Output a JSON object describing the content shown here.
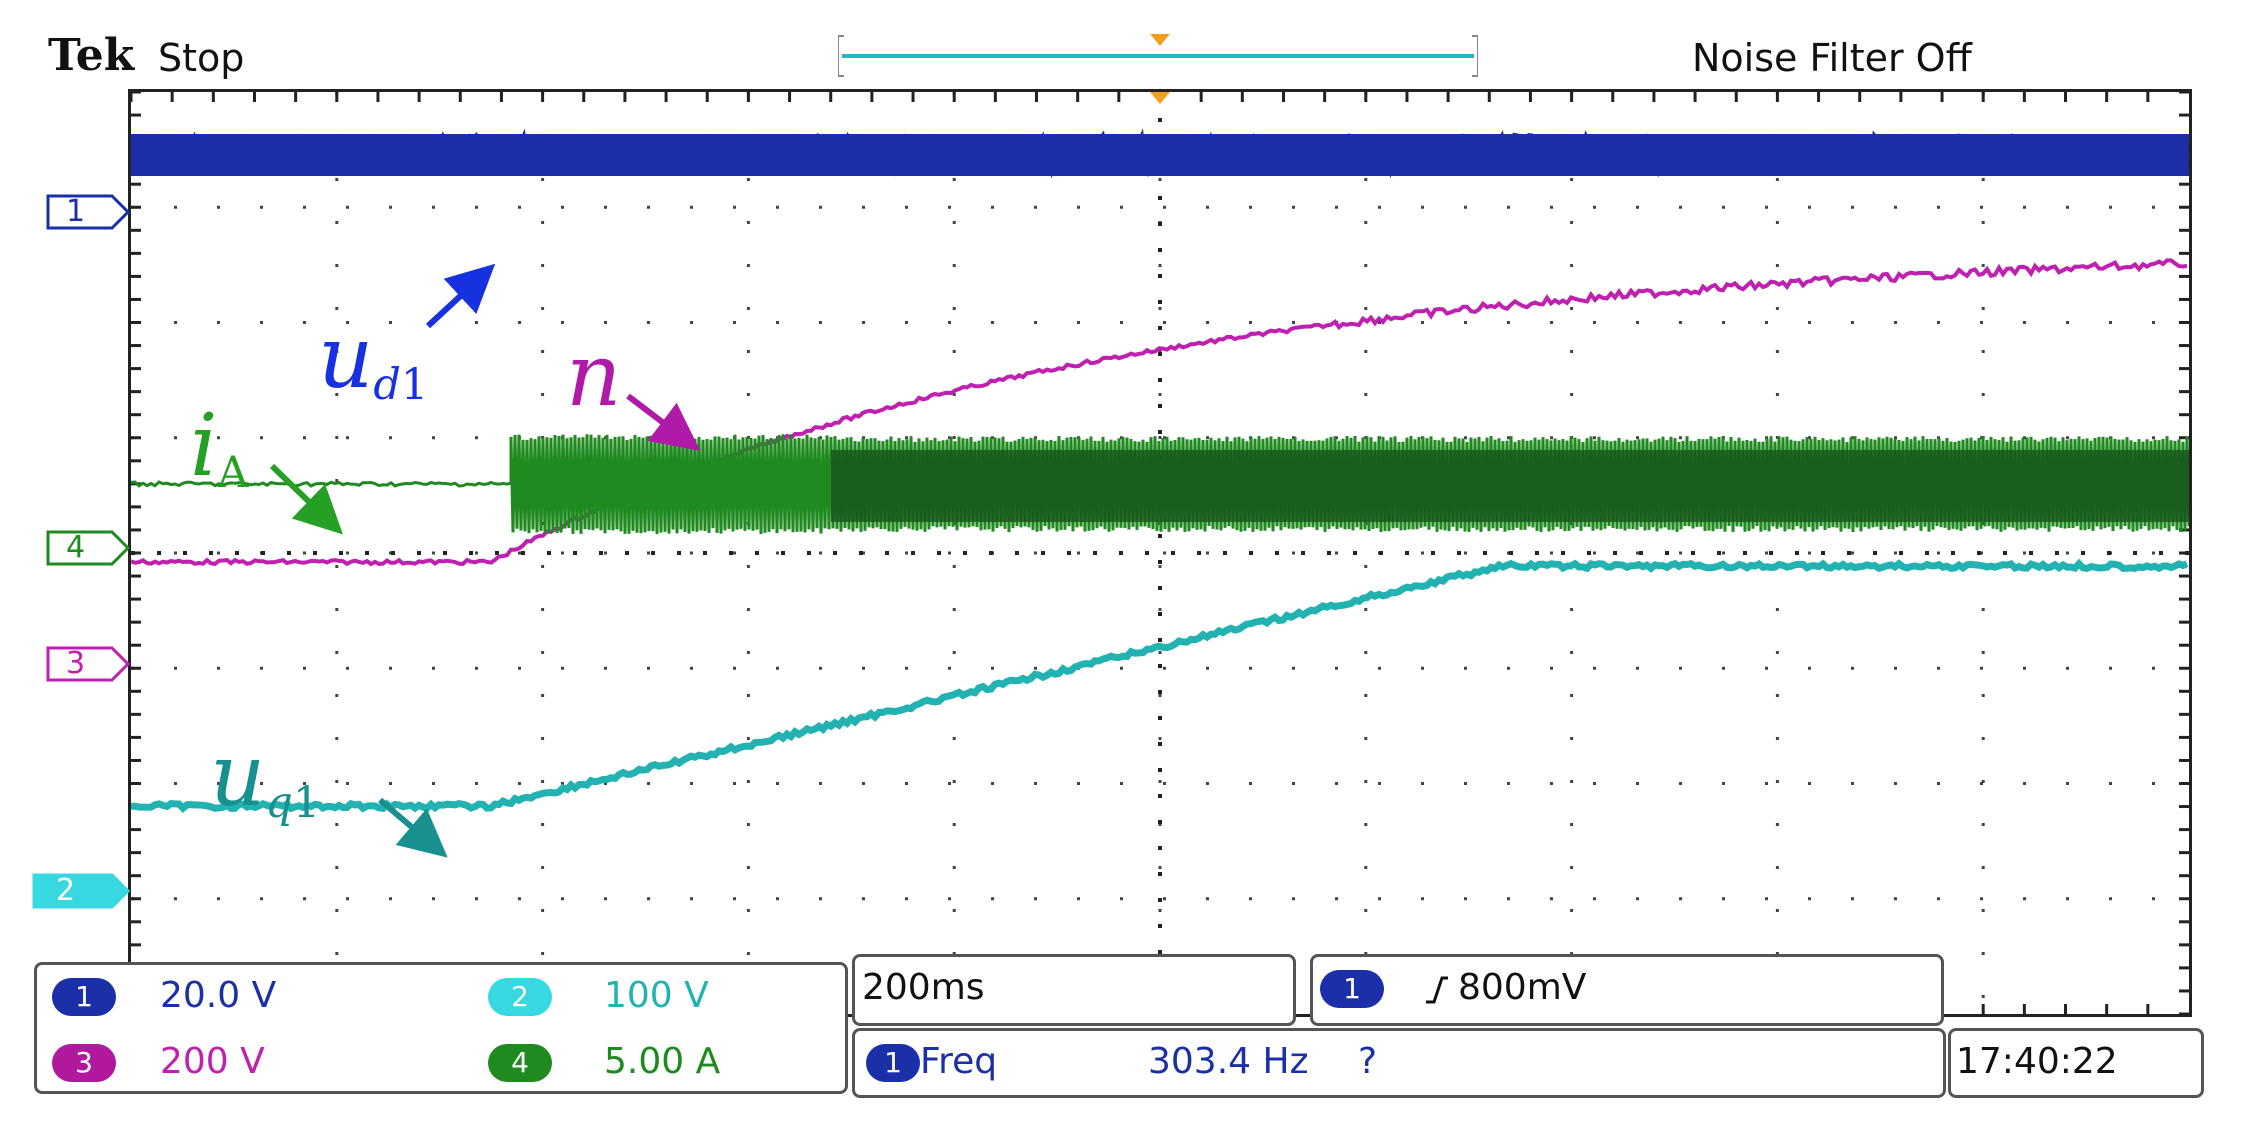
{
  "header": {
    "brand": "Tek",
    "run_state": "Stop",
    "noise_filter": "Noise Filter Off"
  },
  "colors": {
    "ch1": "#1b2fa8",
    "ch2": "#22b2b2",
    "ch3": "#c020b0",
    "ch4": "#1f8a1f",
    "ch4_dark": "#15501a",
    "grid": "#444444"
  },
  "markers": [
    {
      "channel": "1",
      "color": "#1b2fa8",
      "style": "outline"
    },
    {
      "channel": "4",
      "color": "#1f8a1f",
      "style": "outline"
    },
    {
      "channel": "3",
      "color": "#c020b0",
      "style": "outline"
    },
    {
      "channel": "2",
      "color": "#22b2b2",
      "style": "filled"
    }
  ],
  "labels": {
    "ud1": {
      "main": "u",
      "sub": "d",
      "sub2": "1"
    },
    "n": {
      "main": "n"
    },
    "iA": {
      "main": "i",
      "sub": "A"
    },
    "uq1": {
      "main": "u",
      "sub": "q",
      "sub2": "1"
    }
  },
  "channels": [
    {
      "badge": "1",
      "value": "20.0 V",
      "color": "#1b2fa8"
    },
    {
      "badge": "2",
      "value": "100 V",
      "color": "#22b2b2"
    },
    {
      "badge": "3",
      "value": "200 V",
      "color": "#c020b0"
    },
    {
      "badge": "4",
      "value": "5.00 A",
      "color": "#1f8a1f"
    }
  ],
  "timebase": "200ms",
  "trigger": {
    "badge": "1",
    "slope_icon": "rising-edge-icon",
    "level": "800mV"
  },
  "measurement": {
    "badge": "1",
    "label": "Freq",
    "value": "303.4 Hz",
    "status": "?"
  },
  "clock": "17:40:22"
}
